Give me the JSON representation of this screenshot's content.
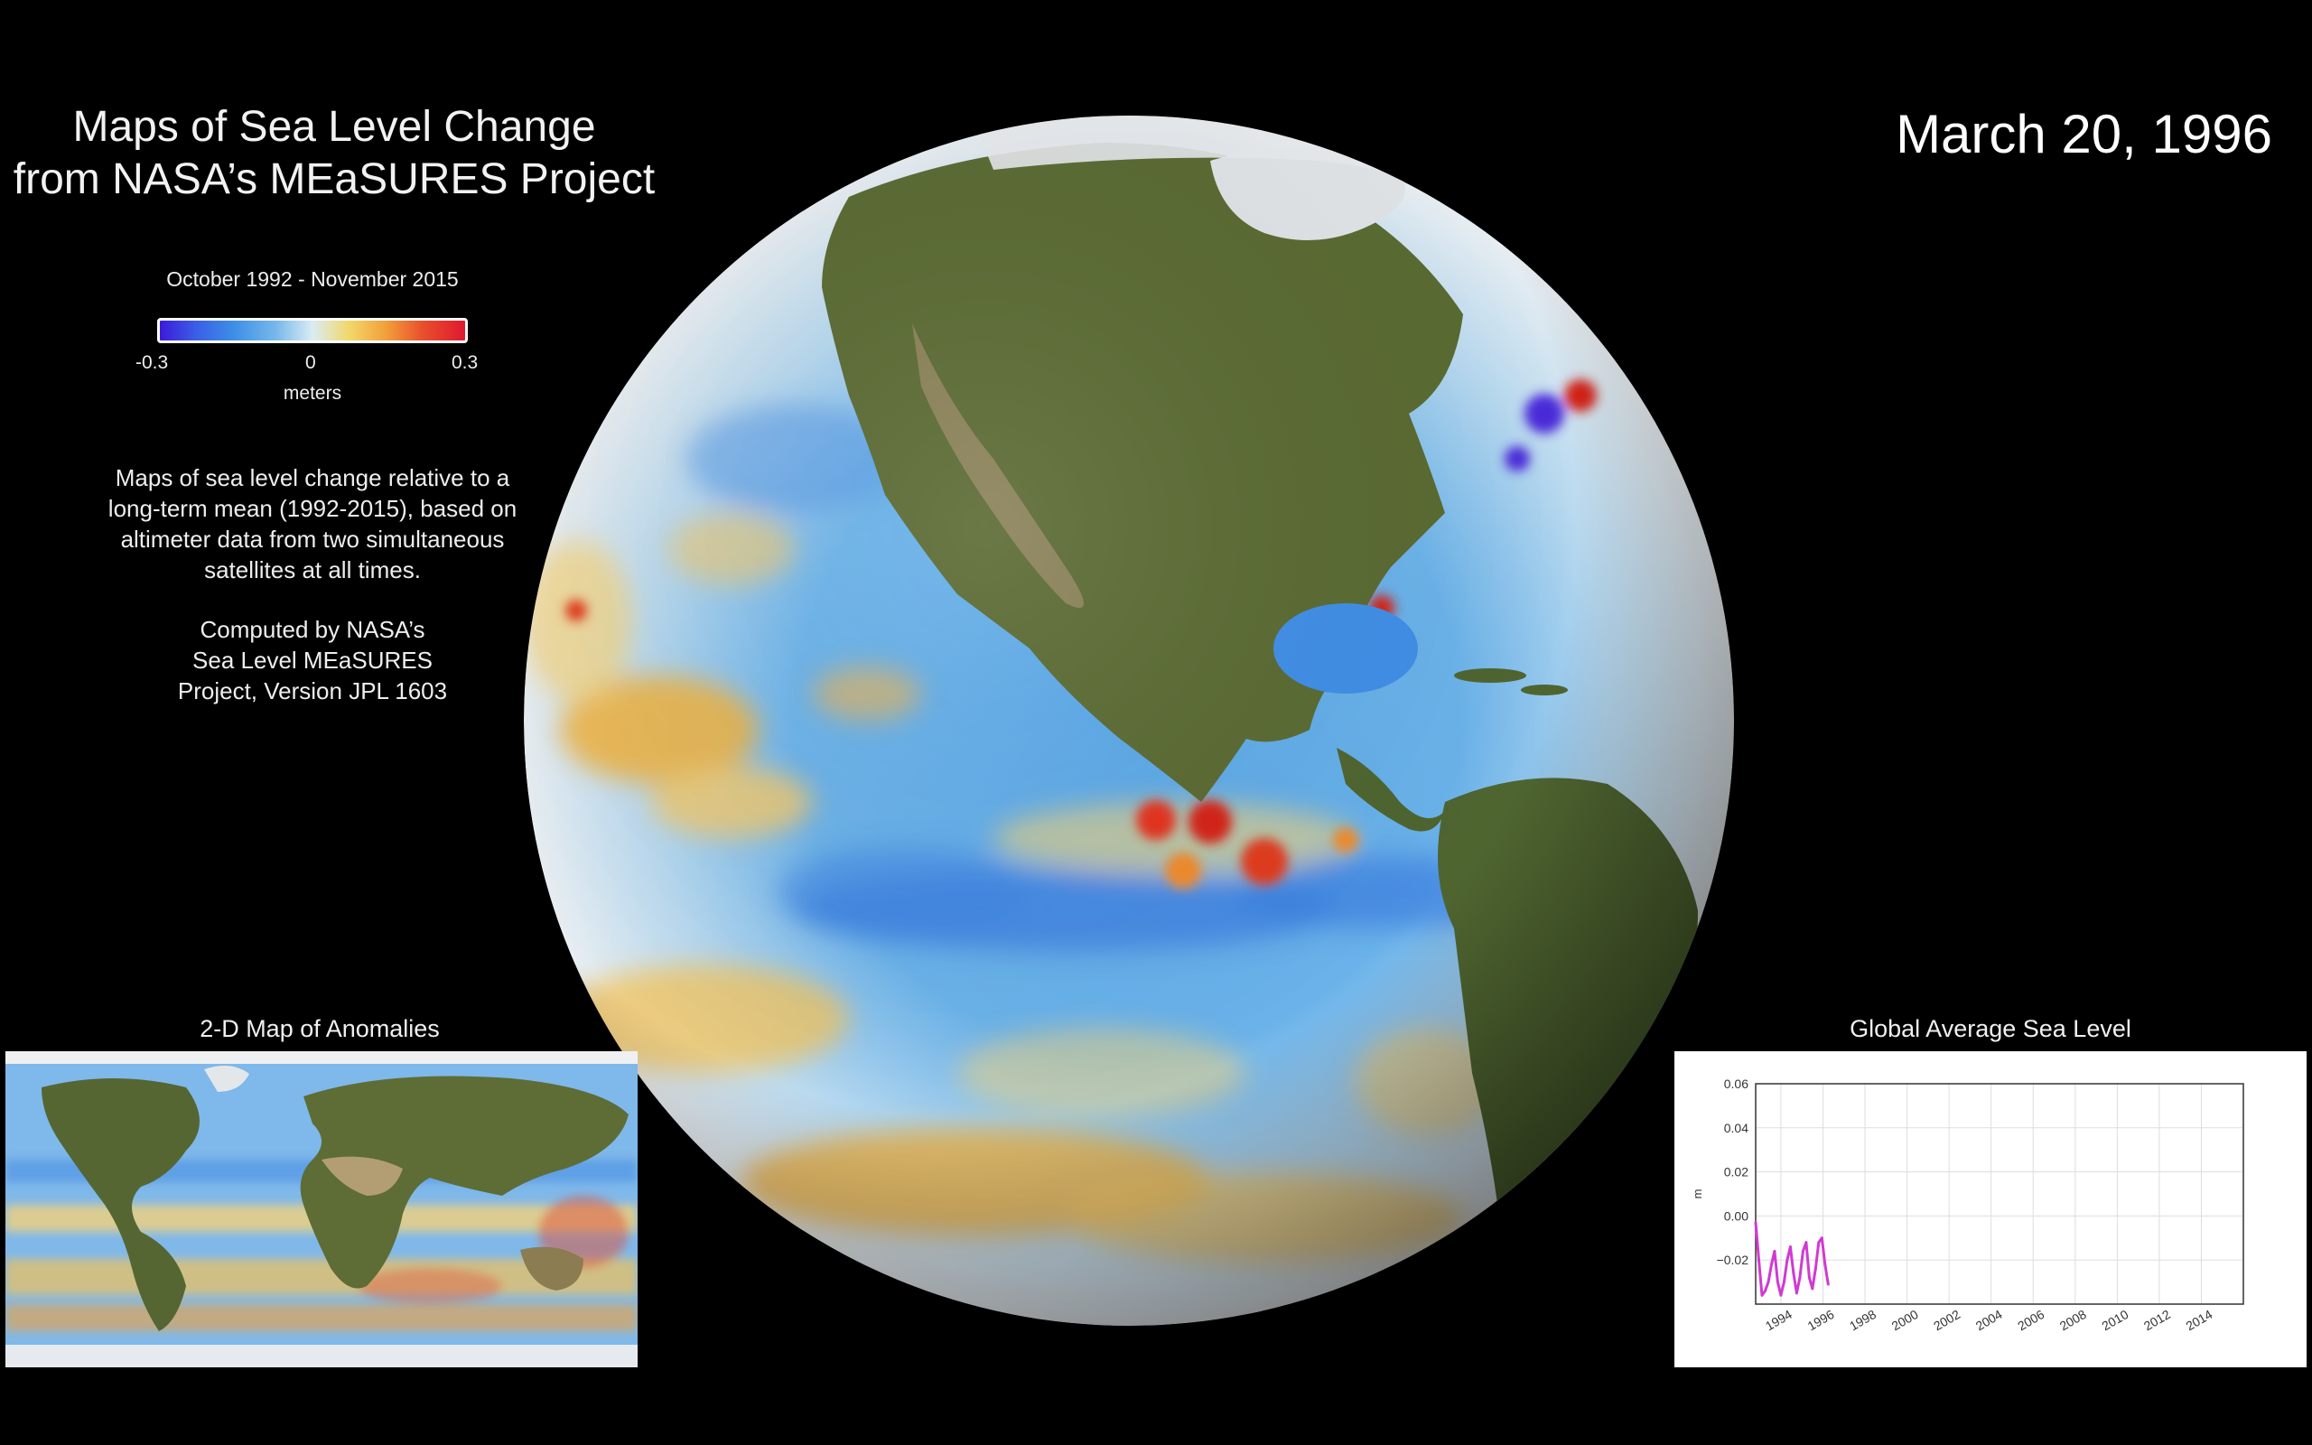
{
  "title": {
    "line1": "Maps of Sea Level Change",
    "line2": "from NASA’s MEaSURES Project"
  },
  "date": "March 20, 1996",
  "colorbar": {
    "period": "October 1992 - November 2015",
    "min_label": "-0.3",
    "mid_label": "0",
    "max_label": "0.3",
    "unit": "meters"
  },
  "description": {
    "p1": [
      "Maps of sea level change relative to a",
      "long-term mean (1992-2015), based on",
      "altimeter data from two simultaneous",
      "satellites at all times."
    ],
    "p2": [
      "Computed by NASA’s",
      "Sea Level MEaSURES",
      "Project, Version JPL 1603"
    ]
  },
  "map2d": {
    "title": "2-D Map of Anomalies"
  },
  "chart": {
    "title": "Global Average Sea Level"
  },
  "colors": {
    "background": "#000000",
    "ocean_low": "#3b1bd9",
    "ocean_mid": "#d9ecf5",
    "ocean_high": "#e01830",
    "land": "#5a6a32",
    "series": "#d13ad1"
  },
  "chart_data": {
    "type": "line",
    "title": "",
    "xlabel": "",
    "ylabel": "m",
    "xlim": [
      1992.8,
      2016
    ],
    "ylim": [
      -0.04,
      0.06
    ],
    "yticks": [
      0.06,
      0.04,
      0.02,
      0.0,
      -0.02
    ],
    "ytick_labels": [
      "0.06",
      "0.04",
      "0.02",
      "0.00",
      "−0.02"
    ],
    "xticks": [
      1994,
      1996,
      1998,
      2000,
      2002,
      2004,
      2006,
      2008,
      2010,
      2012,
      2014
    ],
    "xtick_labels": [
      "1994",
      "1996",
      "1998",
      "2000",
      "2002",
      "2004",
      "2006",
      "2008",
      "2010",
      "2012",
      "2014"
    ],
    "grid": true,
    "series": [
      {
        "name": "",
        "x": [
          1992.8,
          1992.95,
          1993.1,
          1993.25,
          1993.4,
          1993.55,
          1993.7,
          1993.85,
          1994.0,
          1994.15,
          1994.3,
          1994.45,
          1994.6,
          1994.75,
          1994.9,
          1995.05,
          1995.2,
          1995.35,
          1995.5,
          1995.65,
          1995.8,
          1995.95,
          1996.1,
          1996.25
        ],
        "y": [
          -0.003,
          -0.02,
          -0.036,
          -0.034,
          -0.03,
          -0.022,
          -0.016,
          -0.03,
          -0.036,
          -0.03,
          -0.02,
          -0.014,
          -0.026,
          -0.035,
          -0.028,
          -0.016,
          -0.012,
          -0.028,
          -0.033,
          -0.024,
          -0.012,
          -0.01,
          -0.022,
          -0.031
        ]
      }
    ]
  }
}
